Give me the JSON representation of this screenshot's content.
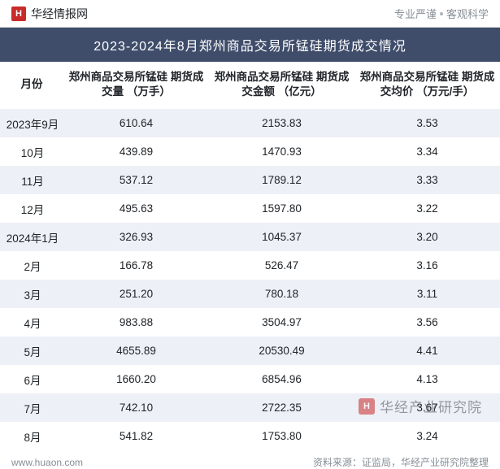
{
  "topbar": {
    "logo_glyph": "H",
    "brand": "华经情报网",
    "slogan_left": "专业严谨",
    "slogan_right": "客观科学"
  },
  "title": "2023-2024年8月郑州商品交易所锰硅期货成交情况",
  "table": {
    "type": "table",
    "background_color": "#ffffff",
    "stripe_color": "#edf0f6",
    "header_band_color": "#3f4d6b",
    "text_color": "#212529",
    "font_size": 13.5,
    "columns": [
      "月份",
      "郑州商品交易所锰硅\n期货成交量\n（万手）",
      "郑州商品交易所锰硅\n期货成交金额\n（亿元）",
      "郑州商品交易所锰硅\n期货成交均价\n（万元/手）"
    ],
    "rows": [
      {
        "month": "2023年9月",
        "volume": "610.64",
        "amount": "2153.83",
        "avg": "3.53"
      },
      {
        "month": "10月",
        "volume": "439.89",
        "amount": "1470.93",
        "avg": "3.34"
      },
      {
        "month": "11月",
        "volume": "537.12",
        "amount": "1789.12",
        "avg": "3.33"
      },
      {
        "month": "12月",
        "volume": "495.63",
        "amount": "1597.80",
        "avg": "3.22"
      },
      {
        "month": "2024年1月",
        "volume": "326.93",
        "amount": "1045.37",
        "avg": "3.20"
      },
      {
        "month": "2月",
        "volume": "166.78",
        "amount": "526.47",
        "avg": "3.16"
      },
      {
        "month": "3月",
        "volume": "251.20",
        "amount": "780.18",
        "avg": "3.11"
      },
      {
        "month": "4月",
        "volume": "983.88",
        "amount": "3504.97",
        "avg": "3.56"
      },
      {
        "month": "5月",
        "volume": "4655.89",
        "amount": "20530.49",
        "avg": "4.41"
      },
      {
        "month": "6月",
        "volume": "1660.20",
        "amount": "6854.96",
        "avg": "4.13"
      },
      {
        "month": "7月",
        "volume": "742.10",
        "amount": "2722.35",
        "avg": "3.67"
      },
      {
        "month": "8月",
        "volume": "541.82",
        "amount": "1753.80",
        "avg": "3.24"
      }
    ]
  },
  "footer": {
    "site": "www.huaon.com",
    "source": "资料来源：证监局，华经产业研究院整理"
  },
  "watermark": {
    "logo_glyph": "H",
    "text": "华经产业研究院"
  }
}
